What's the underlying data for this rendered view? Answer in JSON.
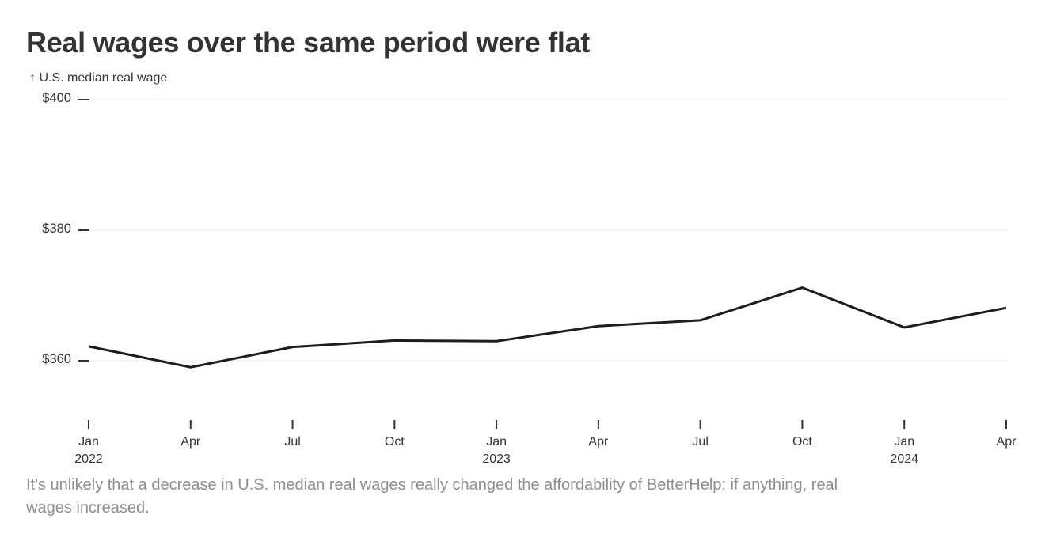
{
  "header": {
    "title": "Real wages over the same period were flat"
  },
  "axes": {
    "y_label": "↑ U.S. median real wage"
  },
  "caption": {
    "text": "It's unlikely that a decrease in U.S. median real wages really changed the affordability of BetterHelp; if anything, real wages increased."
  },
  "colors": {
    "title_text": "#333333",
    "axis_text": "#333333",
    "grid": "#ebebeb",
    "tick": "#333333",
    "line": "#1d1d1f",
    "caption_text": "#8e8e8e",
    "background": "#ffffff"
  },
  "chart_data": {
    "type": "line",
    "title": "Real wages over the same period were flat",
    "ylabel": "U.S. median real wage",
    "xlabel": "",
    "categories": [
      "Jan 2022",
      "Apr 2022",
      "Jul 2022",
      "Oct 2022",
      "Jan 2023",
      "Apr 2023",
      "Jul 2023",
      "Oct 2023",
      "Jan 2024",
      "Apr 2024"
    ],
    "x_tick_labels": [
      {
        "month": "Jan",
        "year": "2022"
      },
      {
        "month": "Apr"
      },
      {
        "month": "Jul"
      },
      {
        "month": "Oct"
      },
      {
        "month": "Jan",
        "year": "2023"
      },
      {
        "month": "Apr"
      },
      {
        "month": "Jul"
      },
      {
        "month": "Oct"
      },
      {
        "month": "Jan",
        "year": "2024"
      },
      {
        "month": "Apr"
      }
    ],
    "series": [
      {
        "name": "U.S. median real wage",
        "values": [
          362.2,
          359.0,
          362.1,
          363.1,
          363.0,
          365.3,
          366.2,
          371.2,
          365.1,
          368.1
        ]
      }
    ],
    "yticks": [
      {
        "value": 360,
        "label": "$360"
      },
      {
        "value": 380,
        "label": "$380"
      },
      {
        "value": 400,
        "label": "$400"
      }
    ],
    "ylim": [
      355,
      400
    ],
    "grid": "horizontal",
    "legend_position": "none"
  }
}
